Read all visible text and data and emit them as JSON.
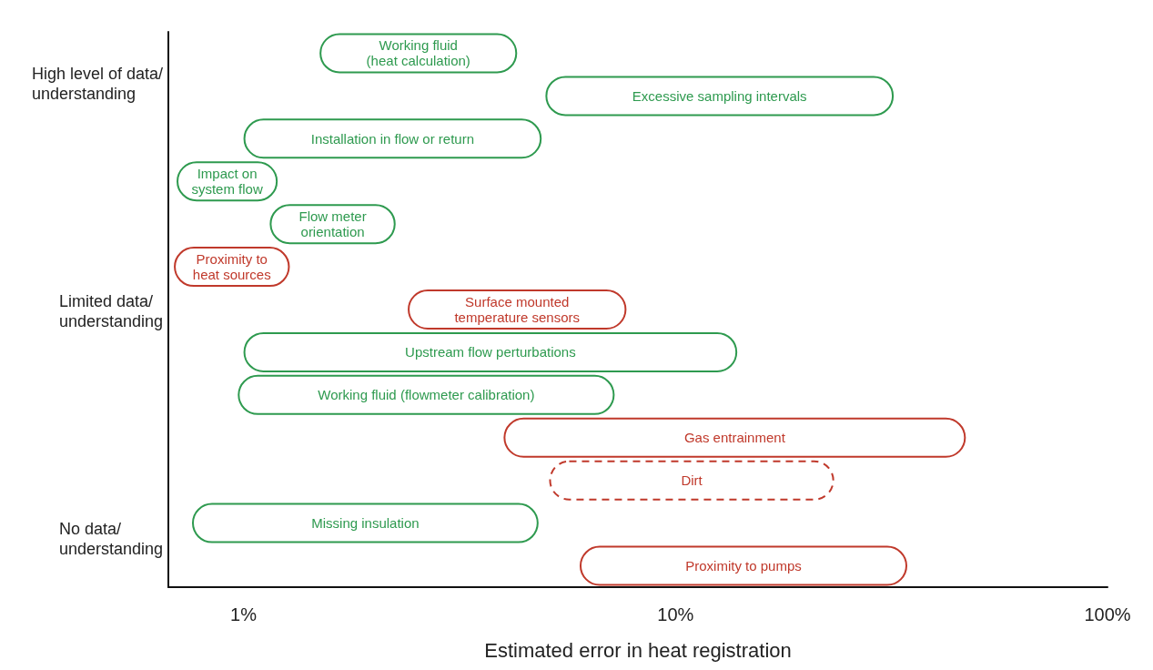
{
  "chart_data": {
    "type": "bar",
    "orientation": "horizontal",
    "log": "x",
    "xlabel": "Estimated error in heat registration",
    "xlim": [
      0.67,
      100
    ],
    "xticks": [
      {
        "value": 1,
        "label": "1%"
      },
      {
        "value": 10,
        "label": "10%"
      },
      {
        "value": 100,
        "label": "100%"
      }
    ],
    "grid": false,
    "categories": [
      "Working fluid\n(heat calculation)",
      "Excessive sampling intervals",
      "Installation in flow or return",
      "Impact on\nsystem flow",
      "Flow meter\norientation",
      "Proximity to\nheat sources",
      "Surface mounted\ntemperature sensors",
      "Upstream flow perturbations",
      "Working fluid (flowmeter calibration)",
      "Gas entrainment",
      "Dirt",
      "Missing insulation",
      "Proximity to pumps"
    ],
    "series": [
      {
        "color": "#2e9a4f",
        "line_style": "solid",
        "base": [
          1.5,
          5,
          1,
          0.7,
          1.15,
          null,
          null,
          1,
          0.97,
          null,
          null,
          0.76,
          null
        ],
        "values": [
          2.8,
          27,
          3.9,
          0.5,
          1.1,
          null,
          null,
          12.9,
          6.26,
          null,
          null,
          4.06,
          null
        ]
      },
      {
        "color": "#c0392b",
        "line_style": "solid",
        "base": [
          null,
          null,
          null,
          null,
          null,
          0.69,
          2.4,
          null,
          null,
          4,
          null,
          null,
          6
        ],
        "values": [
          null,
          null,
          null,
          null,
          null,
          0.59,
          5.3,
          null,
          null,
          43,
          null,
          null,
          28.4
        ]
      },
      {
        "color": "#c0392b",
        "line_style": "dashed",
        "base": [
          null,
          null,
          null,
          null,
          null,
          null,
          null,
          null,
          null,
          null,
          5.1,
          null,
          null
        ],
        "values": [
          null,
          null,
          null,
          null,
          null,
          null,
          null,
          null,
          null,
          null,
          18.2,
          null,
          null
        ]
      }
    ],
    "annotations": [
      "High level of data/\nunderstanding",
      "Limited data/\nunderstanding",
      "No data/\nunderstanding"
    ]
  }
}
